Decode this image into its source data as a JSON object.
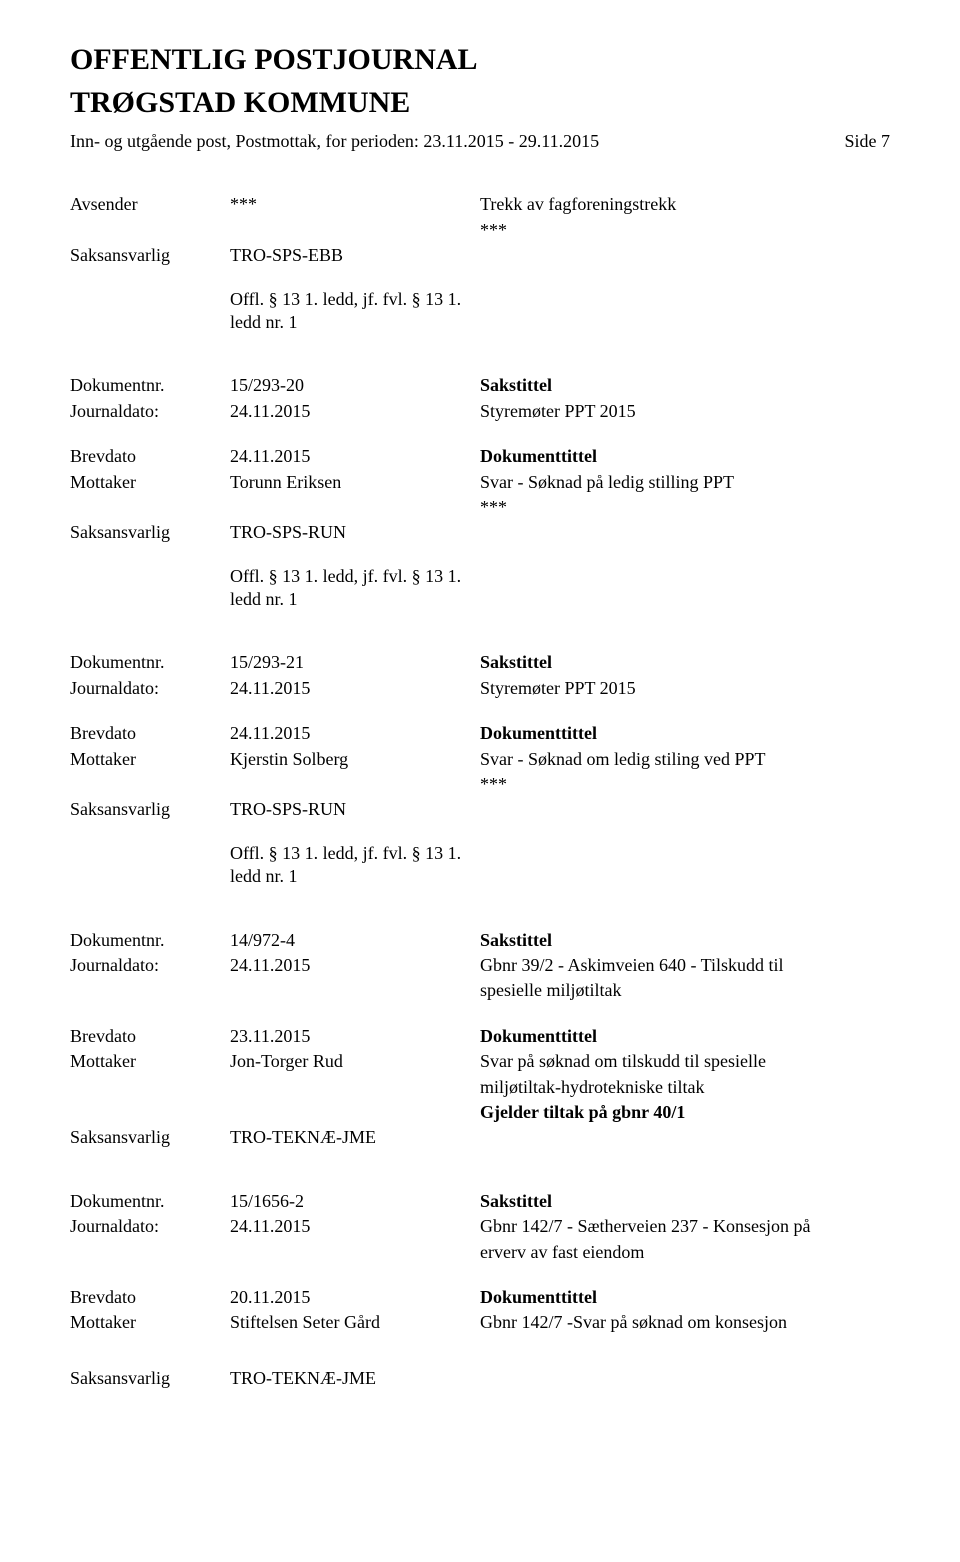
{
  "header": {
    "title": "OFFENTLIG POSTJOURNAL",
    "subtitle": "TRØGSTAD KOMMUNE",
    "period": "Inn- og utgående post, Postmottak, for perioden: 23.11.2015 - 29.11.2015",
    "page": "Side 7"
  },
  "labels": {
    "avsender": "Avsender",
    "saksansvarlig": "Saksansvarlig",
    "dokumentnr": "Dokumentnr.",
    "journaldato": "Journaldato:",
    "brevdato": "Brevdato",
    "mottaker": "Mottaker",
    "sakstittel": "Sakstittel",
    "dokumenttittel": "Dokumenttittel"
  },
  "records": [
    {
      "type": "partial",
      "rows": [
        {
          "label": "avsender",
          "left": "***",
          "right": "Trekk av fagforeningstrekk"
        },
        {
          "label": "",
          "left": "",
          "right": "***"
        },
        {
          "label": "saksansvarlig",
          "left": "TRO-SPS-EBB",
          "right": ""
        }
      ],
      "offl": [
        "Offl. § 13 1. ledd, jf. fvl. § 13 1.",
        "ledd nr. 1"
      ]
    },
    {
      "type": "full",
      "docRows": [
        {
          "label": "dokumentnr",
          "left": "15/293-20",
          "right": "Sakstittel",
          "rightBold": true
        },
        {
          "label": "journaldato",
          "left": "24.11.2015",
          "right": "Styremøter PPT 2015"
        }
      ],
      "bodyRows": [
        {
          "label": "brevdato",
          "left": "24.11.2015",
          "right": "Dokumenttittel",
          "rightBold": true
        },
        {
          "label": "mottaker",
          "left": "Torunn Eriksen",
          "right": "Svar - Søknad på ledig stilling PPT"
        },
        {
          "label": "",
          "left": "",
          "right": "***"
        },
        {
          "label": "saksansvarlig",
          "left": "TRO-SPS-RUN",
          "right": ""
        }
      ],
      "offl": [
        "Offl. § 13 1. ledd, jf. fvl. § 13 1.",
        "ledd nr. 1"
      ]
    },
    {
      "type": "full",
      "docRows": [
        {
          "label": "dokumentnr",
          "left": "15/293-21",
          "right": "Sakstittel",
          "rightBold": true
        },
        {
          "label": "journaldato",
          "left": "24.11.2015",
          "right": "Styremøter PPT 2015"
        }
      ],
      "bodyRows": [
        {
          "label": "brevdato",
          "left": "24.11.2015",
          "right": "Dokumenttittel",
          "rightBold": true
        },
        {
          "label": "mottaker",
          "left": "Kjerstin Solberg",
          "right": "Svar - Søknad om ledig stiling ved PPT"
        },
        {
          "label": "",
          "left": "",
          "right": "***"
        },
        {
          "label": "saksansvarlig",
          "left": "TRO-SPS-RUN",
          "right": ""
        }
      ],
      "offl": [
        "Offl. § 13 1. ledd, jf. fvl. § 13 1.",
        "ledd nr. 1"
      ]
    },
    {
      "type": "full",
      "docRows": [
        {
          "label": "dokumentnr",
          "left": "14/972-4",
          "right": "Sakstittel",
          "rightBold": true
        },
        {
          "label": "journaldato",
          "left": "24.11.2015",
          "right": "Gbnr 39/2 - Askimveien 640 - Tilskudd til"
        },
        {
          "label": "",
          "left": "",
          "right": "spesielle miljøtiltak"
        }
      ],
      "bodyRows": [
        {
          "label": "brevdato",
          "left": "23.11.2015",
          "right": "Dokumenttittel",
          "rightBold": true
        },
        {
          "label": "mottaker",
          "left": "Jon-Torger Rud",
          "right": "Svar på søknad om tilskudd til spesielle"
        },
        {
          "label": "",
          "left": "",
          "right": "miljøtiltak-hydrotekniske tiltak"
        },
        {
          "label": "",
          "left": "",
          "right": "Gjelder tiltak på gbnr 40/1",
          "rightBold": true
        },
        {
          "label": "saksansvarlig",
          "left": "TRO-TEKNÆ-JME",
          "right": ""
        }
      ],
      "offl": null
    },
    {
      "type": "full",
      "docRows": [
        {
          "label": "dokumentnr",
          "left": "15/1656-2",
          "right": "Sakstittel",
          "rightBold": true
        },
        {
          "label": "journaldato",
          "left": "24.11.2015",
          "right": "Gbnr 142/7 - Sætherveien 237 - Konsesjon på"
        },
        {
          "label": "",
          "left": "",
          "right": "erverv av fast eiendom"
        }
      ],
      "bodyRows": [
        {
          "label": "brevdato",
          "left": "20.11.2015",
          "right": "Dokumenttittel",
          "rightBold": true
        },
        {
          "label": "mottaker",
          "left": "Stiftelsen Seter Gård",
          "right": "Gbnr 142/7 -Svar på søknad om konsesjon"
        }
      ],
      "offl": null,
      "extraSaksansvarlig": "TRO-TEKNÆ-JME"
    }
  ]
}
